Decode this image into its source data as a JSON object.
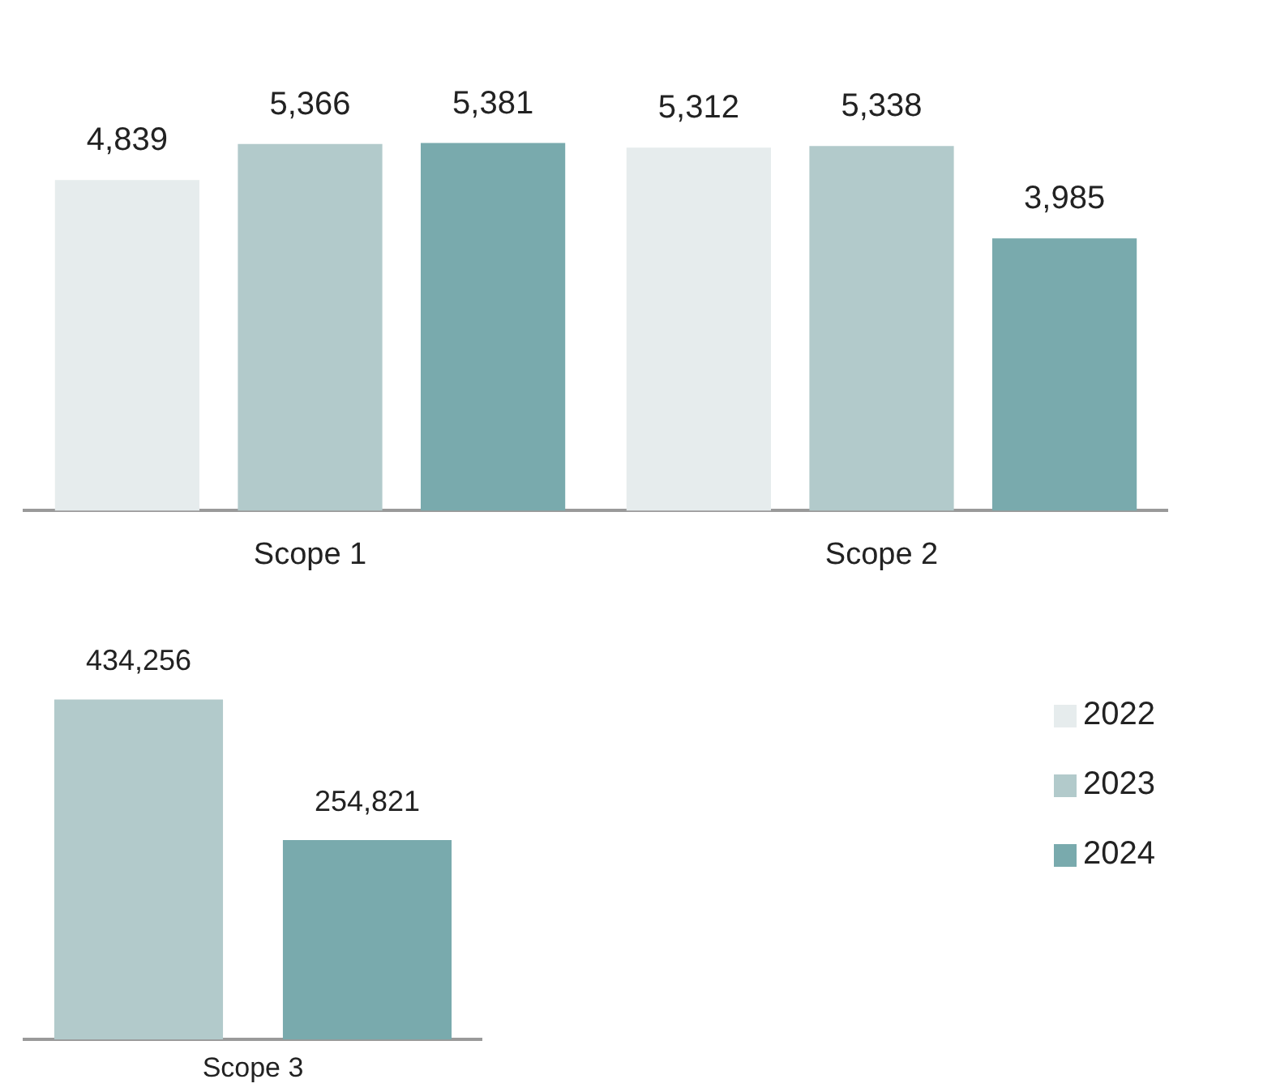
{
  "chart_data": [
    {
      "type": "bar",
      "categories": [
        "Scope 1",
        "Scope 2"
      ],
      "series": [
        {
          "name": "2022",
          "color": "#e6eced",
          "values": [
            4839,
            5312
          ],
          "value_labels": [
            "4,839",
            "5,312"
          ]
        },
        {
          "name": "2023",
          "color": "#b2cacb",
          "values": [
            5366,
            5338
          ],
          "value_labels": [
            "5,366",
            "5,338"
          ]
        },
        {
          "name": "2024",
          "color": "#79aaad",
          "values": [
            5381,
            3985
          ],
          "value_labels": [
            "5,381",
            "3,985"
          ]
        }
      ],
      "tick_labels": "x",
      "grid": false,
      "legend": "bottom right"
    },
    {
      "type": "bar",
      "categories": [
        null,
        null
      ],
      "xlabel": "Scope 3",
      "colors": [
        "#b2cacb",
        "#79aaad"
      ],
      "values": [
        434256,
        254821
      ],
      "value_labels": [
        "434,256",
        "254,821"
      ],
      "tick_labels": "x",
      "grid": false
    }
  ]
}
